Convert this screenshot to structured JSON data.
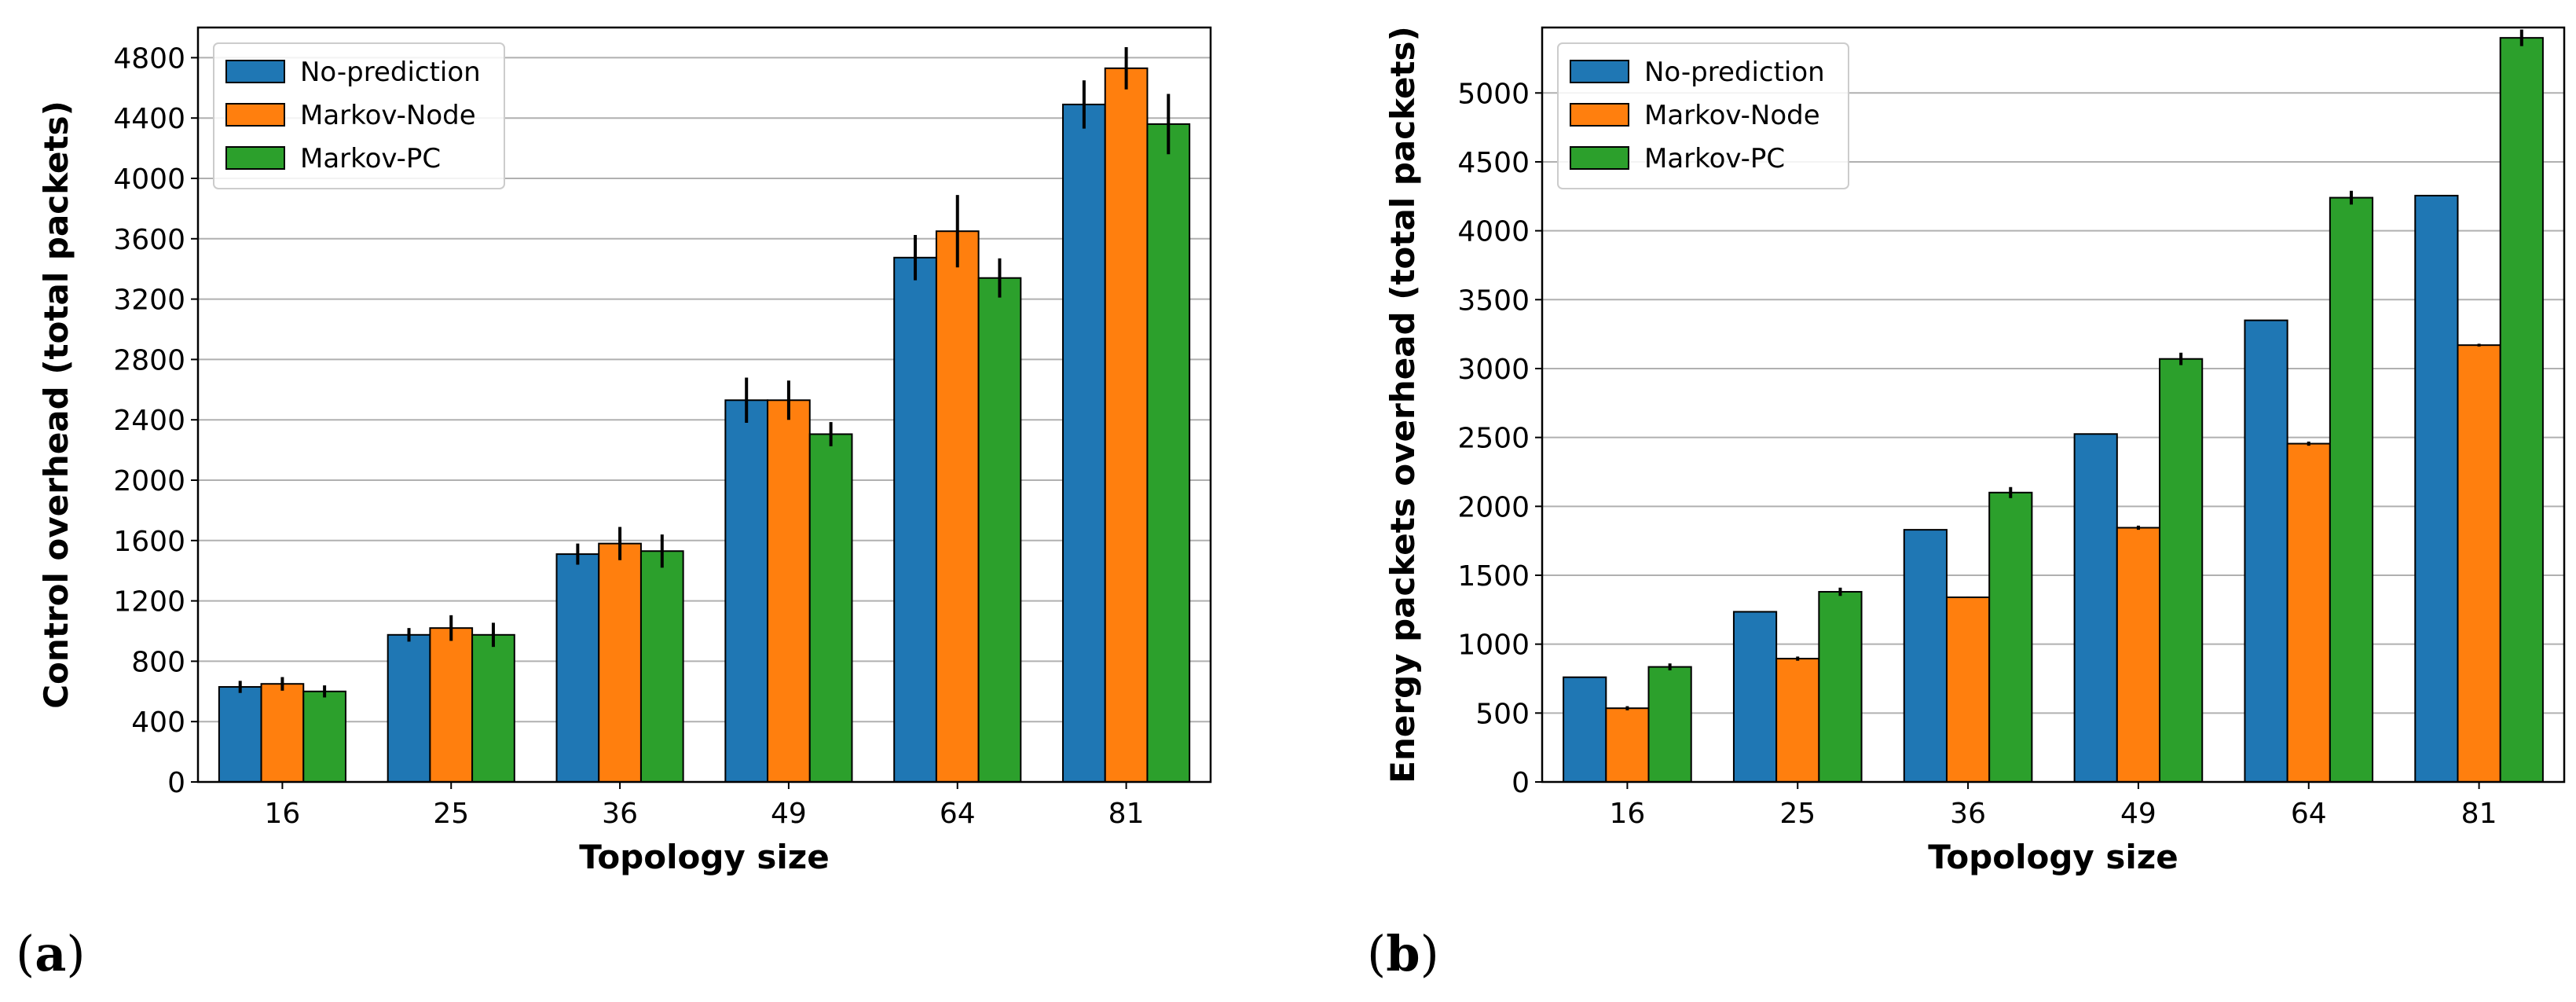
{
  "colors": {
    "No-prediction": "#1f77b4",
    "Markov-Node": "#ff7f0e",
    "Markov-PC": "#2ca02c",
    "grid": "#b0b0b0"
  },
  "panels": [
    {
      "label_open": "(",
      "label_letter": "a",
      "label_close": ")"
    },
    {
      "label_open": "(",
      "label_letter": "b",
      "label_close": ")"
    }
  ],
  "chart_data": [
    {
      "type": "bar",
      "categories": [
        "16",
        "25",
        "36",
        "49",
        "64",
        "81"
      ],
      "xlabel": "Topology size",
      "ylabel": "Control overhead (total packets)",
      "ylim": [
        0,
        5000
      ],
      "yticks": [
        0,
        400,
        800,
        1200,
        1600,
        2000,
        2400,
        2800,
        3200,
        3600,
        4000,
        4400,
        4800
      ],
      "grid": "y",
      "legend": "top-left",
      "series": [
        {
          "name": "No-prediction",
          "values": [
            630,
            975,
            1510,
            2530,
            3475,
            4490
          ],
          "errors": [
            40,
            45,
            70,
            150,
            150,
            160
          ]
        },
        {
          "name": "Markov-Node",
          "values": [
            650,
            1020,
            1580,
            2530,
            3650,
            4730
          ],
          "errors": [
            45,
            85,
            110,
            130,
            240,
            140
          ]
        },
        {
          "name": "Markov-PC",
          "values": [
            600,
            975,
            1530,
            2305,
            3340,
            4360
          ],
          "errors": [
            40,
            80,
            110,
            80,
            130,
            200
          ]
        }
      ]
    },
    {
      "type": "bar",
      "categories": [
        "16",
        "25",
        "36",
        "49",
        "64",
        "81"
      ],
      "xlabel": "Topology size",
      "ylabel": "Energy packets overhead (total packets)",
      "ylim": [
        0,
        5475
      ],
      "yticks": [
        0,
        500,
        1000,
        1500,
        2000,
        2500,
        3000,
        3500,
        4000,
        4500,
        5000
      ],
      "grid": "y",
      "legend": "top-left",
      "series": [
        {
          "name": "No-prediction",
          "values": [
            760,
            1235,
            1830,
            2525,
            3350,
            4255
          ],
          "errors": [
            0,
            0,
            0,
            0,
            0,
            0
          ]
        },
        {
          "name": "Markov-Node",
          "values": [
            535,
            895,
            1340,
            1845,
            2455,
            3170
          ],
          "errors": [
            15,
            15,
            5,
            15,
            15,
            10
          ]
        },
        {
          "name": "Markov-PC",
          "values": [
            835,
            1380,
            2100,
            3070,
            4240,
            5400
          ],
          "errors": [
            25,
            30,
            40,
            45,
            50,
            60
          ]
        }
      ]
    }
  ]
}
